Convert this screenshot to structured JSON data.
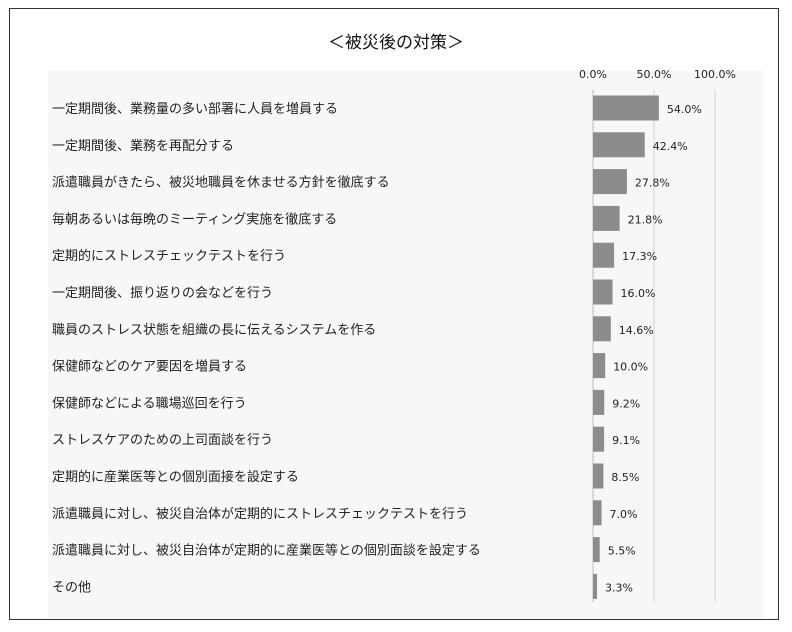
{
  "chart_data": {
    "type": "bar",
    "orientation": "horizontal",
    "title": "＜被災後の対策＞",
    "categories": [
      "一定期間後、業務量の多い部署に人員を増員する",
      "一定期間後、業務を再配分する",
      "派遣職員がきたら、被災地職員を休ませる方針を徹底する",
      "毎朝あるいは毎晩のミーティング実施を徹底する",
      "定期的にストレスチェックテストを行う",
      "一定期間後、振り返りの会などを行う",
      "職員のストレス状態を組織の長に伝えるシステムを作る",
      "保健師などのケア要因を増員する",
      "保健師などによる職場巡回を行う",
      "ストレスケアのための上司面談を行う",
      "定期的に産業医等との個別面接を設定する",
      "派遣職員に対し、被災自治体が定期的にストレスチェックテストを行う",
      "派遣職員に対し、被災自治体が定期的に産業医等との個別面談を設定する",
      "その他"
    ],
    "values": [
      54.0,
      42.4,
      27.8,
      21.8,
      17.3,
      16.0,
      14.6,
      10.0,
      9.2,
      9.1,
      8.5,
      7.0,
      5.5,
      3.3
    ],
    "value_labels": [
      "54.0%",
      "42.4%",
      "27.8%",
      "21.8%",
      "17.3%",
      "16.0%",
      "14.6%",
      "10.0%",
      "9.2%",
      "9.1%",
      "8.5%",
      "7.0%",
      "5.5%",
      "3.3%"
    ],
    "xlim": [
      0,
      100
    ],
    "xticks": [
      0,
      50,
      100
    ],
    "xtick_labels": [
      "0.0%",
      "50.0%",
      "100.0%"
    ],
    "xaxis_position": "top",
    "gridlines": true,
    "bar_color": "#8c8c8c",
    "grid_color": "#d0d0d0"
  }
}
